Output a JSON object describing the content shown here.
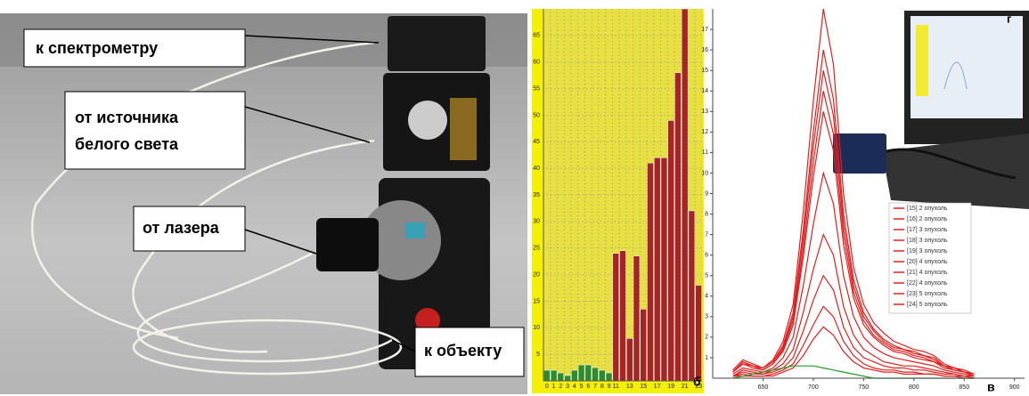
{
  "photo_labels": {
    "spectrometer": "к спектрометру",
    "white_light_1": "от источника",
    "white_light_2": "белого света",
    "laser": "от лазера",
    "object": "к объекту"
  },
  "inset_label": "г",
  "chart_data": [
    {
      "type": "bar",
      "panel_label": "б",
      "categories": [
        "0",
        "1",
        "2",
        "3",
        "4",
        "5",
        "6",
        "7",
        "8",
        "9",
        "11",
        null,
        "13",
        null,
        "15",
        null,
        "17",
        null,
        "19",
        null,
        "21",
        null,
        "23"
      ],
      "series": [
        {
          "color": "#2e8b2e",
          "values": [
            2,
            2,
            1.5,
            1,
            2,
            3,
            3,
            2.5,
            2,
            1.5,
            null,
            null,
            null,
            null,
            null,
            null,
            null,
            null,
            null,
            null,
            null,
            null,
            null
          ]
        },
        {
          "color": "#a52424",
          "values": [
            null,
            null,
            null,
            null,
            null,
            null,
            null,
            null,
            null,
            null,
            24,
            24.5,
            8,
            23.5,
            13.5,
            41,
            42,
            42,
            49,
            58,
            70,
            32,
            18
          ]
        }
      ],
      "ylim": [
        0,
        70
      ],
      "yticks": [
        5,
        10,
        15,
        20,
        25,
        30,
        35,
        40,
        45,
        50,
        55,
        60,
        65
      ],
      "grid": true
    },
    {
      "type": "line",
      "panel_label": "в",
      "x": [
        620,
        630,
        640,
        650,
        660,
        670,
        680,
        690,
        700,
        710,
        720,
        730,
        740,
        750,
        760,
        770,
        780,
        790,
        800,
        810,
        820,
        830,
        840,
        850,
        860
      ],
      "series": [
        {
          "name": "[15] 2 опухоль",
          "color": "#e02020",
          "values": [
            0.4,
            0.9,
            0.7,
            0.5,
            0.9,
            1.8,
            3.6,
            8.1,
            13.5,
            18,
            15.3,
            9,
            5.4,
            3.6,
            2.7,
            2.2,
            1.8,
            1.6,
            1.4,
            1.3,
            1.1,
            0.7,
            0.5,
            0.4,
            0.2
          ]
        },
        {
          "name": "[16] 2 опухоль",
          "color": "#e02020",
          "values": [
            0.3,
            0.8,
            0.6,
            0.5,
            0.8,
            1.6,
            3.2,
            7.2,
            12,
            16,
            13.6,
            8,
            4.8,
            3.2,
            2.4,
            1.9,
            1.6,
            1.4,
            1.3,
            1.1,
            1,
            0.6,
            0.5,
            0.3,
            0.2
          ]
        },
        {
          "name": "[17] 3 опухоль",
          "color": "#e02020",
          "values": [
            0.3,
            0.8,
            0.6,
            0.5,
            0.8,
            1.5,
            3,
            6.8,
            11.3,
            15,
            12.8,
            7.5,
            4.5,
            3,
            2.3,
            1.8,
            1.5,
            1.4,
            1.2,
            1.1,
            0.9,
            0.6,
            0.5,
            0.3,
            0.2
          ]
        },
        {
          "name": "[18] 3 опухоль",
          "color": "#e02020",
          "values": [
            0.3,
            0.7,
            0.6,
            0.4,
            0.7,
            1.4,
            2.8,
            6.3,
            10.5,
            14,
            11.9,
            7,
            4.2,
            2.8,
            2.1,
            1.7,
            1.4,
            1.3,
            1.1,
            1,
            0.8,
            0.6,
            0.4,
            0.3,
            0.1
          ]
        },
        {
          "name": "[19] 3 опухоль",
          "color": "#e02020",
          "values": [
            0.3,
            0.7,
            0.5,
            0.4,
            0.7,
            1.3,
            2.6,
            5.9,
            9.8,
            13,
            11.1,
            6.5,
            3.9,
            2.6,
            2,
            1.6,
            1.3,
            1.2,
            1,
            0.9,
            0.8,
            0.5,
            0.4,
            0.3,
            0.1
          ]
        },
        {
          "name": "[20] 4 опухоль",
          "color": "#e02020",
          "values": [
            0.2,
            0.5,
            0.4,
            0.3,
            0.5,
            1,
            2,
            4.5,
            7.5,
            10,
            8.5,
            5,
            3,
            2,
            1.5,
            1.2,
            1,
            0.9,
            0.8,
            0.7,
            0.6,
            0.4,
            0.3,
            0.2,
            0.1
          ]
        },
        {
          "name": "[21] 4 опухоль",
          "color": "#e02020",
          "values": [
            0.1,
            0.4,
            0.3,
            0.2,
            0.4,
            0.7,
            1.4,
            3.2,
            5.3,
            7,
            6,
            3.5,
            2.1,
            1.4,
            1.1,
            0.8,
            0.7,
            0.6,
            0.6,
            0.5,
            0.4,
            0.3,
            0.2,
            0.1,
            0.1
          ]
        },
        {
          "name": "[22] 4 опухоль",
          "color": "#e02020",
          "values": [
            0.1,
            0.3,
            0.2,
            0.2,
            0.3,
            0.5,
            1,
            2.3,
            3.8,
            5,
            4.3,
            2.5,
            1.5,
            1,
            0.8,
            0.6,
            0.5,
            0.5,
            0.4,
            0.4,
            0.3,
            0.2,
            0.2,
            0.1,
            0
          ]
        },
        {
          "name": "[23] 5 опухоль",
          "color": "#e02020",
          "values": [
            0.1,
            0.2,
            0.1,
            0.1,
            0.2,
            0.4,
            0.7,
            1.6,
            2.6,
            3.5,
            3,
            1.8,
            1.1,
            0.7,
            0.5,
            0.4,
            0.4,
            0.3,
            0.3,
            0.2,
            0.2,
            0.1,
            0.1,
            0.1,
            0
          ]
        },
        {
          "name": "[24] 5 опухоль",
          "color": "#e02020",
          "values": [
            0.1,
            0.1,
            0.1,
            0.1,
            0.1,
            0.3,
            0.5,
            1.1,
            1.9,
            2.5,
            2.1,
            1.3,
            0.8,
            0.5,
            0.4,
            0.3,
            0.3,
            0.2,
            0.2,
            0.2,
            0.2,
            0.1,
            0.1,
            0,
            0
          ]
        },
        {
          "color": "#2a9a2a",
          "values": [
            0,
            0.1,
            0.2,
            0.3,
            0.4,
            0.5,
            0.6,
            0.6,
            0.6,
            0.5,
            0.4,
            0.3,
            0.2,
            0.1,
            0,
            0,
            0,
            0,
            0,
            0,
            0,
            0,
            0,
            0,
            0
          ]
        }
      ],
      "xlim": [
        600,
        910
      ],
      "xticks": [
        650,
        700,
        750,
        800,
        850,
        900
      ],
      "ylim": [
        0,
        18
      ],
      "yticks": [
        1,
        2,
        3,
        4,
        5,
        6,
        7,
        8,
        9,
        10,
        11,
        12,
        13,
        14,
        15,
        16,
        17
      ],
      "grid": false
    }
  ]
}
